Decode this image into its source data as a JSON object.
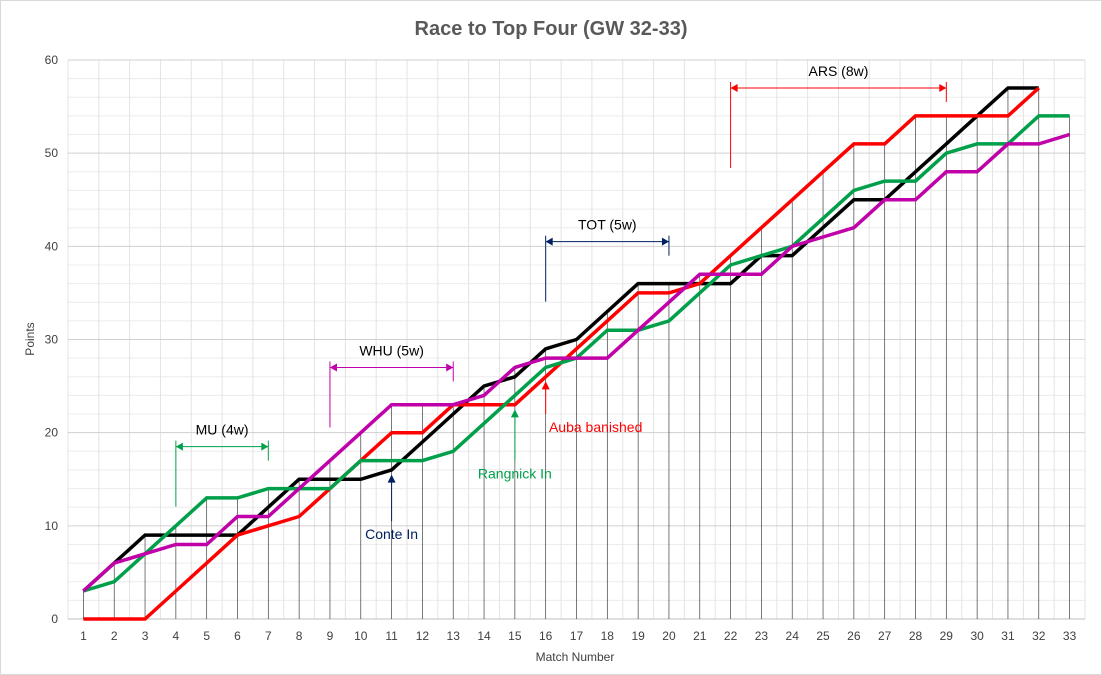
{
  "chart_data": {
    "type": "line",
    "title": "Race to Top Four (GW 32-33)",
    "xlabel": "Match Number",
    "ylabel": "Points",
    "xlim": [
      1,
      33
    ],
    "ylim": [
      0,
      60
    ],
    "y_ticks": [
      0,
      10,
      20,
      30,
      40,
      50,
      60
    ],
    "grid": true,
    "legend": "none",
    "x": [
      1,
      2,
      3,
      4,
      5,
      6,
      7,
      8,
      9,
      10,
      11,
      12,
      13,
      14,
      15,
      16,
      17,
      18,
      19,
      20,
      21,
      22,
      23,
      24,
      25,
      26,
      27,
      28,
      29,
      30,
      31,
      32,
      33
    ],
    "series": [
      {
        "color": "#000000",
        "values": [
          3,
          6,
          9,
          9,
          9,
          9,
          12,
          15,
          15,
          15,
          16,
          19,
          22,
          25,
          26,
          29,
          30,
          33,
          36,
          36,
          36,
          36,
          39,
          39,
          42,
          45,
          45,
          48,
          51,
          54,
          57,
          57,
          null
        ]
      },
      {
        "color": "#ff0000",
        "values": [
          0,
          0,
          0,
          3,
          6,
          9,
          10,
          11,
          14,
          17,
          20,
          20,
          23,
          23,
          23,
          26,
          29,
          32,
          35,
          35,
          36,
          39,
          42,
          45,
          48,
          51,
          51,
          54,
          54,
          54,
          54,
          57,
          null
        ]
      },
      {
        "color": "#00a04a",
        "values": [
          3,
          4,
          7,
          10,
          13,
          13,
          14,
          14,
          14,
          17,
          17,
          17,
          18,
          21,
          24,
          27,
          28,
          31,
          31,
          32,
          35,
          38,
          39,
          40,
          43,
          46,
          47,
          47,
          50,
          51,
          51,
          54,
          54
        ]
      },
      {
        "color": "#c000a8",
        "values": [
          3,
          6,
          7,
          8,
          8,
          11,
          11,
          14,
          17,
          20,
          23,
          23,
          23,
          24,
          27,
          28,
          28,
          28,
          31,
          34,
          37,
          37,
          37,
          40,
          41,
          42,
          45,
          45,
          48,
          48,
          51,
          51,
          52
        ]
      }
    ],
    "annotations": [
      {
        "label": "MU (4w)",
        "color": "#00a04a",
        "x_start": 4,
        "x_end": 7,
        "y": 18.5
      },
      {
        "label": "WHU (5w)",
        "color": "#c000a8",
        "x_start": 9,
        "x_end": 13,
        "y": 27
      },
      {
        "label": "TOT (5w)",
        "color": "#002060",
        "x_start": 16,
        "x_end": 20,
        "y": 40.5
      },
      {
        "label": "ARS (8w)",
        "color": "#ff0000",
        "x_start": 22,
        "x_end": 29,
        "y": 57
      }
    ],
    "events": [
      {
        "label": "Conte In",
        "color": "#002060",
        "x": 11,
        "y_from": 10.5,
        "y_to": 15.5
      },
      {
        "label": "Rangnick In",
        "color": "#00a04a",
        "x": 15,
        "y_from": 17,
        "y_to": 22.5
      },
      {
        "label": "Auba banished",
        "color": "#ff0000",
        "x": 16,
        "y_from": 22,
        "y_to": 25.5
      }
    ]
  }
}
